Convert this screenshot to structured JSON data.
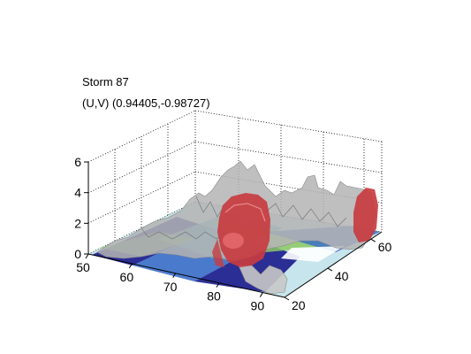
{
  "chart_data": {
    "type": "surface3d",
    "title": "Storm 87",
    "subtitle": "(U,V) (0.94405,-0.98727)",
    "x_axis": {
      "ticks": [
        50,
        60,
        70,
        80,
        90
      ],
      "range": [
        50,
        95
      ]
    },
    "y_axis": {
      "ticks": [
        20,
        40,
        60
      ],
      "range": [
        20,
        65
      ]
    },
    "z_axis": {
      "ticks": [
        0,
        2,
        4,
        6
      ],
      "range": [
        0,
        6
      ]
    },
    "grid": true,
    "isosurfaces": [
      {
        "level": "low",
        "color": "#b4b4b4"
      },
      {
        "level": "high",
        "color": "#c83c40"
      }
    ],
    "floor_colormap": [
      "#1a1a8c",
      "#3c6ec8",
      "#5fb4c8",
      "#8cc864",
      "#c8c8a0"
    ]
  },
  "colors": {
    "gray_surface": "#b4b4b4",
    "red_surface": "#c83c40",
    "floor_low": "#1a1a8c",
    "floor_mid": "#5fb4c8",
    "floor_high": "#8cc864"
  }
}
